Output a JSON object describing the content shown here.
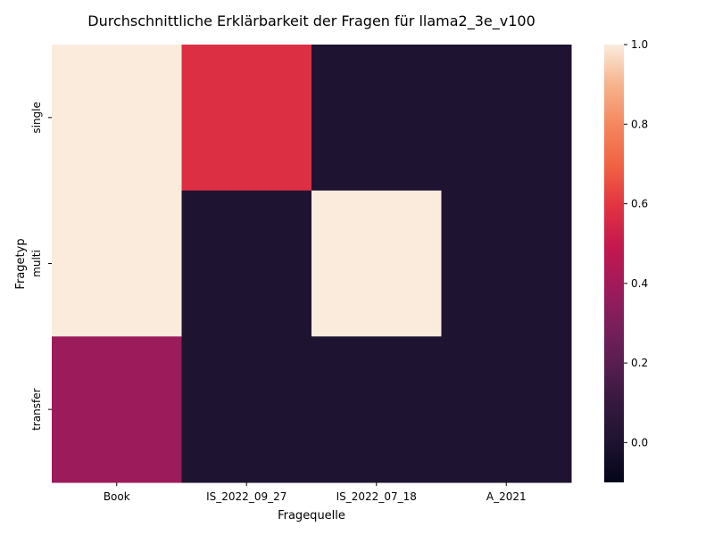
{
  "chart_data": {
    "type": "heatmap",
    "title": "Durchschnittliche Erklärbarkeit der Fragen für llama2_3e_v100",
    "xlabel": "Fragequelle",
    "ylabel": "Fragetyp",
    "x_categories": [
      "Book",
      "IS_2022_09_27",
      "IS_2022_07_18",
      "A_2021"
    ],
    "y_categories": [
      "single",
      "multi",
      "transfer"
    ],
    "values": [
      [
        1.0,
        0.58,
        0.0,
        0.0
      ],
      [
        1.0,
        0.0,
        1.0,
        0.0
      ],
      [
        0.38,
        0.0,
        0.0,
        0.0
      ]
    ],
    "colorbar": {
      "colormap": "rocket",
      "range": [
        -0.1,
        1.0
      ],
      "ticks": [
        "0.0",
        "0.2",
        "0.4",
        "0.6",
        "0.8",
        "1.0"
      ]
    }
  }
}
